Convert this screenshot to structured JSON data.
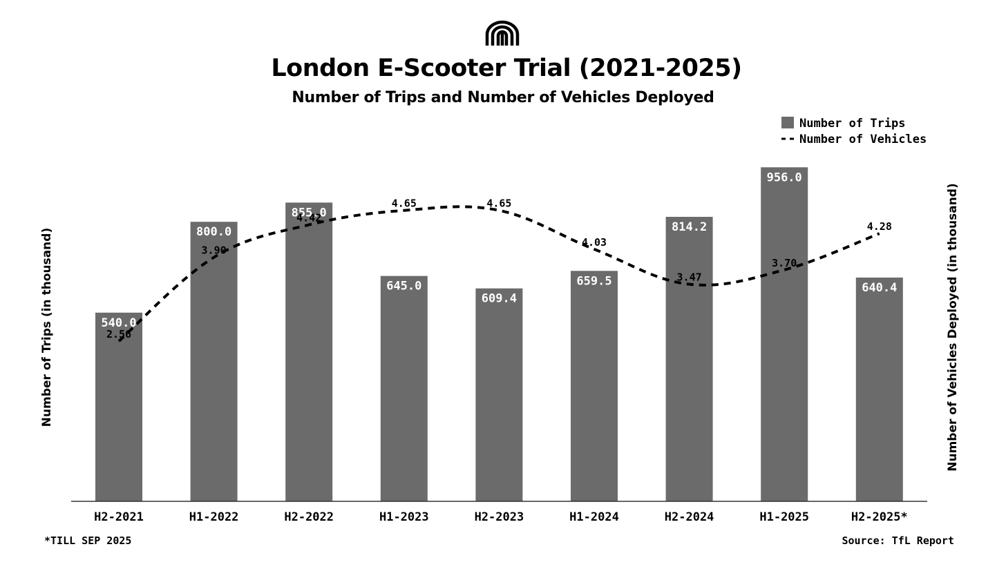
{
  "colors": {
    "bar": "#6b6b6b",
    "line": "#000000",
    "axis": "#333333",
    "bar_label": "#ffffff"
  },
  "header": {
    "logo_icon": "arch-logo-icon",
    "title": "London E-Scooter Trial (2021-2025)",
    "subtitle": "Number of Trips and Number of Vehicles Deployed"
  },
  "legend": {
    "trips": "Number of Trips",
    "vehicles": "Number of Vehicles"
  },
  "footnote": "*TILL SEP 2025",
  "source": "Source: TfL Report",
  "chart_data": {
    "type": "bar",
    "title": "London E-Scooter Trial (2021-2025)",
    "subtitle": "Number of Trips and Number of Vehicles Deployed",
    "categories": [
      "H2-2021",
      "H1-2022",
      "H2-2022",
      "H1-2023",
      "H2-2023",
      "H1-2024",
      "H2-2024",
      "H1-2025",
      "H2-2025*"
    ],
    "series": [
      {
        "name": "Number of Trips",
        "type": "bar",
        "axis": "left",
        "values": [
          540.0,
          800.0,
          855.0,
          645.0,
          609.4,
          659.5,
          814.2,
          956.0,
          640.4
        ],
        "labels": [
          "540.0",
          "800.0",
          "855.0",
          "645.0",
          "609.4",
          "659.5",
          "814.2",
          "956.0",
          "640.4"
        ]
      },
      {
        "name": "Number of Vehicles",
        "type": "line",
        "style": "dashed",
        "axis": "right",
        "values": [
          2.56,
          3.9,
          4.42,
          4.65,
          4.65,
          4.03,
          3.47,
          3.7,
          4.28
        ],
        "labels": [
          "2.56",
          "3.90",
          "4.42",
          "4.65",
          "4.65",
          "4.03",
          "3.47",
          "3.70",
          "4.28"
        ]
      }
    ],
    "ylabel": "Number of Trips (in thousand)",
    "y2label": "Number of Vehicles Deployed (in thousand)",
    "xlabel": "",
    "ylim": [
      0,
      1000
    ],
    "y2lim": [
      0,
      5.53
    ],
    "grid": false,
    "legend_position": "top-right"
  }
}
